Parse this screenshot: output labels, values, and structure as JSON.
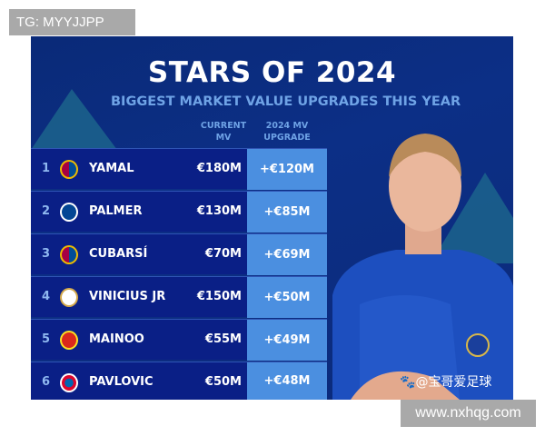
{
  "watermark_top": "TG: MYYJJPP",
  "watermark_bottom": "www.nxhqg.com",
  "poster": {
    "title": "STARS OF 2024",
    "subtitle": "BIGGEST MARKET VALUE UPGRADES THIS YEAR",
    "col_current": [
      "CURRENT",
      "MV"
    ],
    "col_upgrade": [
      "2024 MV",
      "UPGRADE"
    ],
    "rows": [
      {
        "rank": "1",
        "club_icon": "barcelona-crest",
        "name": "YAMAL",
        "current": "€180M",
        "upgrade": "+€120M"
      },
      {
        "rank": "2",
        "club_icon": "chelsea-crest",
        "name": "PALMER",
        "current": "€130M",
        "upgrade": "+€85M"
      },
      {
        "rank": "3",
        "club_icon": "barcelona-crest",
        "name": "CUBARSÍ",
        "current": "€70M",
        "upgrade": "+€69M"
      },
      {
        "rank": "4",
        "club_icon": "real-madrid-crest",
        "name": "VINICIUS JR",
        "current": "€150M",
        "upgrade": "+€50M"
      },
      {
        "rank": "5",
        "club_icon": "manchester-united-crest",
        "name": "MAINOO",
        "current": "€55M",
        "upgrade": "+€49M"
      },
      {
        "rank": "6",
        "club_icon": "bayern-crest",
        "name": "PAVLOVIC",
        "current": "€50M",
        "upgrade": "+€48M"
      }
    ],
    "source_watermark": "@宝哥爱足球"
  },
  "colors": {
    "background": "#0c2f86",
    "row": "#0a1f86",
    "upgrade_col": "#4b8fe0",
    "accent_text": "#6fa3e6"
  }
}
